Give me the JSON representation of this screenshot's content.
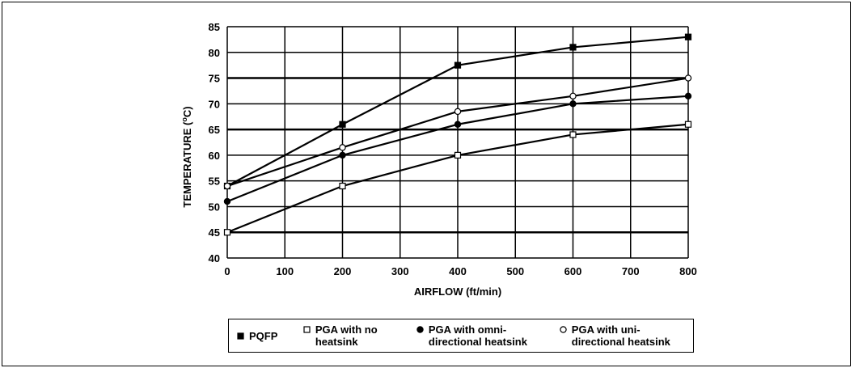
{
  "chart_data": {
    "type": "line",
    "xlabel": "AIRFLOW (ft/min)",
    "ylabel": "TEMPERATURE (",
    "ylabel_sup": "o",
    "ylabel_unit": "C)",
    "xlim": [
      0,
      800
    ],
    "ylim": [
      40,
      85
    ],
    "x_ticks": [
      "0",
      "100",
      "200",
      "300",
      "400",
      "500",
      "600",
      "700",
      "800"
    ],
    "y_ticks": [
      "40",
      "45",
      "50",
      "55",
      "60",
      "65",
      "70",
      "75",
      "80",
      "85"
    ],
    "grid": true,
    "legend_position": "bottom",
    "series": [
      {
        "name": "PQFP",
        "marker": "filled-square",
        "x": [
          0,
          200,
          400,
          600,
          800
        ],
        "y": [
          54,
          66,
          77.5,
          81,
          83
        ]
      },
      {
        "name": "PGA with no heatsink",
        "marker": "open-square",
        "x": [
          0,
          200,
          400,
          600,
          800
        ],
        "y": [
          45,
          54,
          60,
          64,
          66
        ]
      },
      {
        "name": "PGA with omni-directional heatsink",
        "marker": "filled-circle",
        "x": [
          0,
          200,
          400,
          600,
          800
        ],
        "y": [
          51,
          60,
          66,
          70,
          71.5
        ]
      },
      {
        "name": "PGA with uni-directional heatsink",
        "marker": "open-circle",
        "x": [
          0,
          200,
          400,
          600,
          800
        ],
        "y": [
          54,
          61.5,
          68.5,
          71.5,
          75
        ]
      }
    ]
  },
  "legend": {
    "items": [
      {
        "label": "PQFP",
        "marker": "filled-square"
      },
      {
        "label": "PGA with no heatsink",
        "marker": "open-square"
      },
      {
        "label": "PGA with omni-directional heatsink",
        "marker": "filled-circle"
      },
      {
        "label": "PGA with uni-directional heatsink",
        "marker": "open-circle"
      }
    ]
  }
}
